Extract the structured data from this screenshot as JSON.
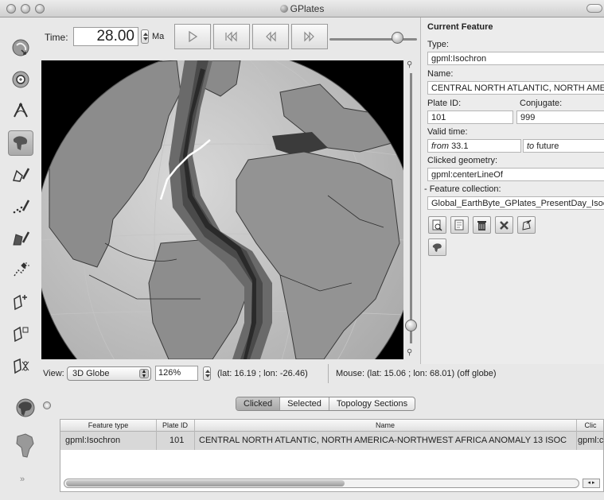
{
  "window": {
    "title": "GPlates"
  },
  "time": {
    "label": "Time:",
    "value": "28.00",
    "unit": "Ma",
    "slider_fraction": 0.78
  },
  "view": {
    "label": "View:",
    "mode": "3D Globe",
    "zoom": "126%",
    "camera": "(lat: 16.19 ; lon: -26.46)",
    "mouse": "Mouse: (lat: 15.06 ; lon: 68.01) (off globe)"
  },
  "current_feature": {
    "heading": "Current Feature",
    "type_label": "Type:",
    "type": "gpml:Isochron",
    "name_label": "Name:",
    "name": "CENTRAL NORTH ATLANTIC, NORTH AMERICA",
    "plate_id_label": "Plate ID:",
    "plate_id": "101",
    "conjugate_label": "Conjugate:",
    "conjugate": "999",
    "valid_time_label": "Valid time:",
    "from_label": "from",
    "from": "33.1",
    "to_label": "to",
    "to": "future",
    "clicked_geometry_label": "Clicked geometry:",
    "clicked_geometry": "gpml:centerLineOf",
    "feature_collection_label": "- Feature collection:",
    "feature_collection": "Global_EarthByte_GPlates_PresentDay_Isochrons"
  },
  "tabs": [
    {
      "label": "Clicked",
      "selected": true
    },
    {
      "label": "Selected",
      "selected": false
    },
    {
      "label": "Topology Sections",
      "selected": false
    }
  ],
  "table": {
    "headers": [
      "Feature type",
      "Plate ID",
      "Name",
      "Clic"
    ],
    "rows": [
      [
        "gpml:Isochron",
        "101",
        "CENTRAL NORTH ATLANTIC, NORTH AMERICA-NORTHWEST AFRICA ANOMALY 13 ISOC",
        "gpml:c"
      ]
    ]
  },
  "icons": {
    "left_toolbar": [
      "drag-globe-icon",
      "zoom-globe-icon",
      "measure-icon",
      "click-geometry-icon",
      "digitise-polyline-icon",
      "digitise-multipoint-icon",
      "digitise-polygon-icon",
      "move-vertex-icon",
      "insert-vertex-icon",
      "delete-vertex-icon",
      "split-feature-icon"
    ],
    "feature_actions": [
      "query-feature-icon",
      "edit-feature-icon",
      "delete-feature-icon",
      "clear-selection-icon",
      "build-topology-icon",
      "reconstruction-pole-icon"
    ]
  }
}
